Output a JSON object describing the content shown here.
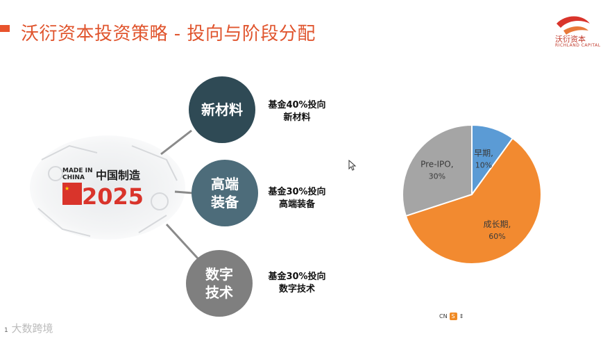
{
  "slide": {
    "title": "沃衍资本投资策略 - 投向与阶段分配",
    "logo": {
      "name": "沃衍资本",
      "subtitle": "RICHLAND CAPITAL",
      "icon": "swoosh-logo-icon"
    },
    "graphic": {
      "line1": "MADE IN",
      "line2": "CHINA",
      "cn": "中国制造",
      "year": "2025",
      "icon": "made-in-china-2025-logo"
    },
    "sectors": [
      {
        "label_line1": "新材料",
        "label_line2": "",
        "note_line1": "基金40%投向",
        "note_line2": "新材料"
      },
      {
        "label_line1": "高端",
        "label_line2": "装备",
        "note_line1": "基金30%投向",
        "note_line2": "高端装备"
      },
      {
        "label_line1": "数字",
        "label_line2": "技术",
        "note_line1": "基金30%投向",
        "note_line2": "数字技术"
      }
    ],
    "pie_labels": [
      {
        "name": "早期,",
        "pct": "10%"
      },
      {
        "name": "成长期,",
        "pct": "60%"
      },
      {
        "name": "Pre-IPO,",
        "pct": "30%"
      }
    ]
  },
  "chart_data": {
    "type": "pie",
    "title": "",
    "categories": [
      "早期",
      "成长期",
      "Pre-IPO"
    ],
    "values": [
      10,
      60,
      30
    ],
    "colors": [
      "#5b9bd5",
      "#f28a30",
      "#a5a5a5"
    ],
    "legend": "none"
  },
  "ime": {
    "lang": "CN",
    "badge": "S"
  },
  "watermark": {
    "text": "大数跨境",
    "page": "1"
  },
  "colors": {
    "accent": "#e0552e",
    "dark": "#2f4a55",
    "mid": "#4d6c7a",
    "gray": "#7f7f7f"
  }
}
